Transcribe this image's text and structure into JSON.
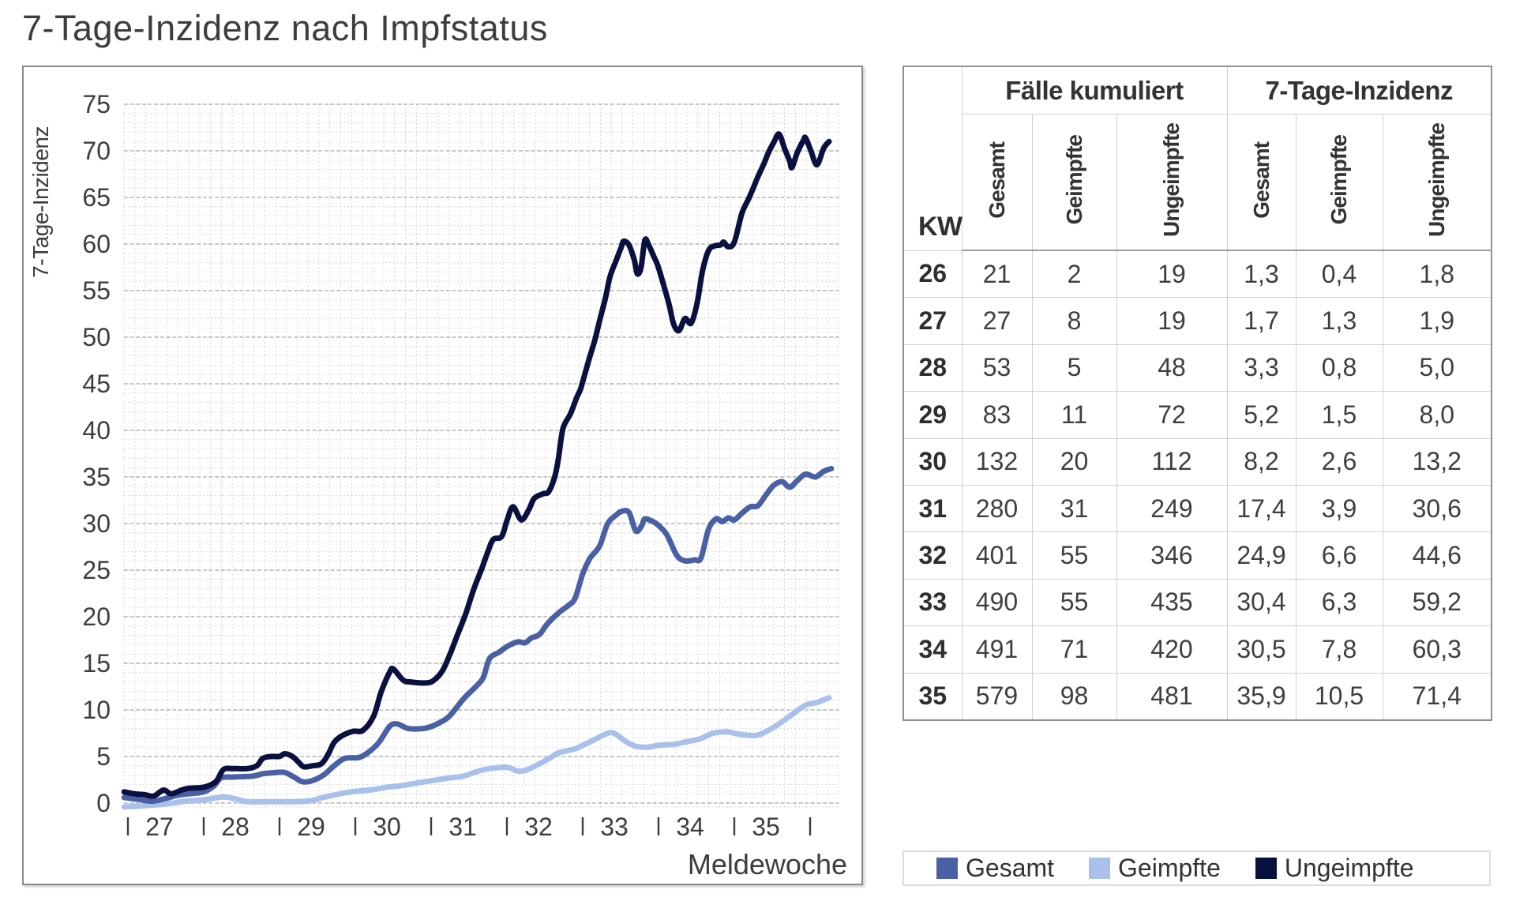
{
  "title": "7-Tage-Inzidenz nach Impfstatus",
  "chart_data": {
    "type": "line",
    "title": "7-Tage-Inzidenz nach Impfstatus",
    "xlabel": "Meldewoche",
    "ylabel": "7-Tage-Inzidenz",
    "x_tick_labels": [
      "27",
      "28",
      "29",
      "30",
      "31",
      "32",
      "33",
      "34",
      "35"
    ],
    "y_ticks": [
      0,
      5,
      10,
      15,
      20,
      25,
      30,
      35,
      40,
      45,
      50,
      55,
      60,
      65,
      70,
      75
    ],
    "ylim": [
      -0.4,
      75
    ],
    "grid": "fine dotted daily/unit mesh with dashed major lines every 5",
    "legend_position": "bottom-right box",
    "series": [
      {
        "name": "Geimpfte",
        "color": "#a9c1ea",
        "points": [
          [
            26.95,
            -0.4
          ],
          [
            27.2,
            -0.3
          ],
          [
            27.5,
            -0.1
          ],
          [
            27.75,
            0.2
          ],
          [
            28.0,
            0.35
          ],
          [
            28.26,
            0.65
          ],
          [
            28.44,
            0.4
          ],
          [
            28.57,
            0.15
          ],
          [
            28.75,
            0.15
          ],
          [
            29.0,
            0.15
          ],
          [
            29.22,
            0.15
          ],
          [
            29.41,
            0.25
          ],
          [
            29.55,
            0.55
          ],
          [
            29.74,
            0.9
          ],
          [
            29.9,
            1.15
          ],
          [
            30.05,
            1.3
          ],
          [
            30.24,
            1.45
          ],
          [
            30.42,
            1.7
          ],
          [
            30.59,
            1.85
          ],
          [
            30.78,
            2.1
          ],
          [
            31.0,
            2.4
          ],
          [
            31.25,
            2.7
          ],
          [
            31.43,
            2.9
          ],
          [
            31.61,
            3.4
          ],
          [
            31.77,
            3.7
          ],
          [
            32.0,
            3.85
          ],
          [
            32.14,
            3.45
          ],
          [
            32.26,
            3.55
          ],
          [
            32.47,
            4.4
          ],
          [
            32.6,
            5.0
          ],
          [
            32.68,
            5.4
          ],
          [
            32.89,
            5.8
          ],
          [
            33.0,
            6.2
          ],
          [
            33.13,
            6.7
          ],
          [
            33.3,
            7.4
          ],
          [
            33.41,
            7.5
          ],
          [
            33.57,
            6.6
          ],
          [
            33.7,
            6.1
          ],
          [
            33.85,
            6.0
          ],
          [
            34.0,
            6.2
          ],
          [
            34.2,
            6.3
          ],
          [
            34.38,
            6.6
          ],
          [
            34.55,
            6.9
          ],
          [
            34.72,
            7.5
          ],
          [
            34.9,
            7.65
          ],
          [
            35.0,
            7.5
          ],
          [
            35.16,
            7.3
          ],
          [
            35.31,
            7.3
          ],
          [
            35.47,
            7.9
          ],
          [
            35.59,
            8.5
          ],
          [
            35.76,
            9.5
          ],
          [
            35.94,
            10.5
          ],
          [
            36.09,
            10.8
          ],
          [
            36.25,
            11.3
          ]
        ]
      },
      {
        "name": "Gesamt",
        "color": "#4a60a5",
        "points": [
          [
            26.95,
            0.6
          ],
          [
            27.14,
            0.4
          ],
          [
            27.32,
            0.2
          ],
          [
            27.5,
            0.5
          ],
          [
            27.66,
            0.85
          ],
          [
            27.81,
            1.0
          ],
          [
            28.0,
            1.2
          ],
          [
            28.13,
            1.8
          ],
          [
            28.23,
            2.7
          ],
          [
            28.39,
            2.8
          ],
          [
            28.65,
            2.9
          ],
          [
            28.78,
            3.15
          ],
          [
            28.91,
            3.25
          ],
          [
            29.06,
            3.3
          ],
          [
            29.19,
            2.8
          ],
          [
            29.3,
            2.3
          ],
          [
            29.43,
            2.4
          ],
          [
            29.58,
            3.0
          ],
          [
            29.72,
            4.0
          ],
          [
            29.86,
            4.8
          ],
          [
            30.05,
            4.9
          ],
          [
            30.18,
            5.5
          ],
          [
            30.31,
            6.5
          ],
          [
            30.45,
            8.2
          ],
          [
            30.55,
            8.5
          ],
          [
            30.7,
            8.0
          ],
          [
            30.89,
            8.0
          ],
          [
            31.0,
            8.2
          ],
          [
            31.15,
            8.8
          ],
          [
            31.25,
            9.4
          ],
          [
            31.43,
            11.2
          ],
          [
            31.59,
            12.5
          ],
          [
            31.69,
            13.5
          ],
          [
            31.77,
            15.5
          ],
          [
            31.9,
            16.2
          ],
          [
            32.0,
            16.8
          ],
          [
            32.14,
            17.3
          ],
          [
            32.24,
            17.2
          ],
          [
            32.32,
            17.7
          ],
          [
            32.43,
            18.1
          ],
          [
            32.53,
            19.2
          ],
          [
            32.68,
            20.4
          ],
          [
            32.81,
            21.2
          ],
          [
            32.9,
            22.0
          ],
          [
            33.0,
            24.6
          ],
          [
            33.09,
            26.2
          ],
          [
            33.16,
            26.9
          ],
          [
            33.23,
            27.7
          ],
          [
            33.33,
            30.0
          ],
          [
            33.44,
            30.9
          ],
          [
            33.51,
            31.3
          ],
          [
            33.61,
            31.2
          ],
          [
            33.7,
            29.2
          ],
          [
            33.78,
            29.8
          ],
          [
            33.82,
            30.5
          ],
          [
            33.93,
            30.2
          ],
          [
            34.0,
            29.8
          ],
          [
            34.11,
            28.8
          ],
          [
            34.24,
            26.6
          ],
          [
            34.35,
            26.0
          ],
          [
            34.48,
            26.1
          ],
          [
            34.56,
            26.3
          ],
          [
            34.66,
            29.4
          ],
          [
            34.76,
            30.5
          ],
          [
            34.84,
            30.2
          ],
          [
            34.92,
            30.6
          ],
          [
            35.0,
            30.4
          ],
          [
            35.1,
            31.1
          ],
          [
            35.21,
            31.8
          ],
          [
            35.31,
            31.9
          ],
          [
            35.42,
            33.1
          ],
          [
            35.52,
            34.1
          ],
          [
            35.63,
            34.5
          ],
          [
            35.73,
            33.9
          ],
          [
            35.83,
            34.6
          ],
          [
            35.94,
            35.3
          ],
          [
            36.07,
            35.0
          ],
          [
            36.18,
            35.6
          ],
          [
            36.28,
            35.9
          ]
        ]
      },
      {
        "name": "Ungeimpfte",
        "color": "#0a1040",
        "points": [
          [
            26.95,
            1.2
          ],
          [
            27.08,
            1.0
          ],
          [
            27.22,
            0.9
          ],
          [
            27.34,
            0.75
          ],
          [
            27.47,
            1.4
          ],
          [
            27.57,
            1.0
          ],
          [
            27.71,
            1.4
          ],
          [
            27.81,
            1.6
          ],
          [
            28.0,
            1.7
          ],
          [
            28.16,
            2.3
          ],
          [
            28.26,
            3.6
          ],
          [
            28.39,
            3.7
          ],
          [
            28.57,
            3.7
          ],
          [
            28.7,
            4.0
          ],
          [
            28.78,
            4.8
          ],
          [
            28.89,
            5.0
          ],
          [
            29.0,
            5.0
          ],
          [
            29.07,
            5.3
          ],
          [
            29.17,
            5.0
          ],
          [
            29.25,
            4.4
          ],
          [
            29.32,
            3.9
          ],
          [
            29.43,
            4.0
          ],
          [
            29.55,
            4.2
          ],
          [
            29.64,
            5.2
          ],
          [
            29.72,
            6.5
          ],
          [
            29.82,
            7.2
          ],
          [
            29.97,
            7.7
          ],
          [
            30.1,
            7.8
          ],
          [
            30.24,
            9.3
          ],
          [
            30.34,
            11.9
          ],
          [
            30.45,
            14.0
          ],
          [
            30.5,
            14.4
          ],
          [
            30.63,
            13.2
          ],
          [
            30.73,
            13.0
          ],
          [
            30.94,
            12.9
          ],
          [
            31.04,
            13.2
          ],
          [
            31.15,
            14.2
          ],
          [
            31.25,
            16.0
          ],
          [
            31.35,
            18.1
          ],
          [
            31.46,
            20.4
          ],
          [
            31.56,
            22.9
          ],
          [
            31.67,
            25.2
          ],
          [
            31.75,
            27.0
          ],
          [
            31.82,
            28.3
          ],
          [
            31.93,
            28.6
          ],
          [
            32.0,
            30.3
          ],
          [
            32.08,
            31.8
          ],
          [
            32.19,
            30.4
          ],
          [
            32.29,
            31.5
          ],
          [
            32.36,
            32.7
          ],
          [
            32.48,
            33.2
          ],
          [
            32.55,
            33.4
          ],
          [
            32.63,
            35.0
          ],
          [
            32.68,
            37.0
          ],
          [
            32.74,
            40.2
          ],
          [
            32.84,
            41.8
          ],
          [
            32.92,
            43.5
          ],
          [
            32.97,
            44.4
          ],
          [
            33.02,
            45.8
          ],
          [
            33.09,
            47.8
          ],
          [
            33.16,
            49.7
          ],
          [
            33.23,
            52.0
          ],
          [
            33.3,
            54.2
          ],
          [
            33.36,
            56.5
          ],
          [
            33.44,
            58.2
          ],
          [
            33.51,
            59.7
          ],
          [
            33.54,
            60.3
          ],
          [
            33.61,
            59.9
          ],
          [
            33.68,
            58.3
          ],
          [
            33.72,
            56.8
          ],
          [
            33.77,
            57.5
          ],
          [
            33.82,
            60.4
          ],
          [
            33.87,
            59.9
          ],
          [
            33.93,
            58.8
          ],
          [
            33.99,
            57.7
          ],
          [
            34.06,
            55.8
          ],
          [
            34.14,
            53.5
          ],
          [
            34.2,
            51.4
          ],
          [
            34.27,
            50.7
          ],
          [
            34.35,
            52.0
          ],
          [
            34.43,
            51.5
          ],
          [
            34.51,
            53.7
          ],
          [
            34.58,
            57.1
          ],
          [
            34.66,
            59.3
          ],
          [
            34.74,
            59.8
          ],
          [
            34.82,
            59.9
          ],
          [
            34.86,
            60.2
          ],
          [
            34.92,
            59.7
          ],
          [
            35.0,
            60.2
          ],
          [
            35.1,
            63.3
          ],
          [
            35.18,
            64.7
          ],
          [
            35.24,
            65.8
          ],
          [
            35.31,
            67.2
          ],
          [
            35.39,
            68.6
          ],
          [
            35.45,
            69.8
          ],
          [
            35.52,
            70.9
          ],
          [
            35.59,
            71.8
          ],
          [
            35.66,
            70.3
          ],
          [
            35.73,
            68.9
          ],
          [
            35.76,
            68.2
          ],
          [
            35.83,
            69.8
          ],
          [
            35.91,
            71.1
          ],
          [
            35.94,
            71.4
          ],
          [
            36.01,
            70.0
          ],
          [
            36.09,
            68.5
          ],
          [
            36.18,
            70.3
          ],
          [
            36.25,
            71.0
          ]
        ]
      }
    ]
  },
  "table": {
    "corner_label": "KW",
    "group_headers": [
      "Fälle kumuliert",
      "7-Tage-Inzidenz"
    ],
    "sub_headers": [
      "Gesamt",
      "Geimpfte",
      "Ungeimpfte",
      "Gesamt",
      "Geimpfte",
      "Ungeimpfte"
    ],
    "rows": [
      {
        "kw": "26",
        "cells": [
          "21",
          "2",
          "19",
          "1,3",
          "0,4",
          "1,8"
        ]
      },
      {
        "kw": "27",
        "cells": [
          "27",
          "8",
          "19",
          "1,7",
          "1,3",
          "1,9"
        ]
      },
      {
        "kw": "28",
        "cells": [
          "53",
          "5",
          "48",
          "3,3",
          "0,8",
          "5,0"
        ]
      },
      {
        "kw": "29",
        "cells": [
          "83",
          "11",
          "72",
          "5,2",
          "1,5",
          "8,0"
        ]
      },
      {
        "kw": "30",
        "cells": [
          "132",
          "20",
          "112",
          "8,2",
          "2,6",
          "13,2"
        ]
      },
      {
        "kw": "31",
        "cells": [
          "280",
          "31",
          "249",
          "17,4",
          "3,9",
          "30,6"
        ]
      },
      {
        "kw": "32",
        "cells": [
          "401",
          "55",
          "346",
          "24,9",
          "6,6",
          "44,6"
        ]
      },
      {
        "kw": "33",
        "cells": [
          "490",
          "55",
          "435",
          "30,4",
          "6,3",
          "59,2"
        ]
      },
      {
        "kw": "34",
        "cells": [
          "491",
          "71",
          "420",
          "30,5",
          "7,8",
          "60,3"
        ]
      },
      {
        "kw": "35",
        "cells": [
          "579",
          "98",
          "481",
          "35,9",
          "10,5",
          "71,4"
        ]
      }
    ]
  },
  "legend": {
    "items": [
      {
        "label": "Gesamt",
        "color": "#4a60a5"
      },
      {
        "label": "Geimpfte",
        "color": "#a9c1ea"
      },
      {
        "label": "Ungeimpfte",
        "color": "#081040"
      }
    ]
  }
}
